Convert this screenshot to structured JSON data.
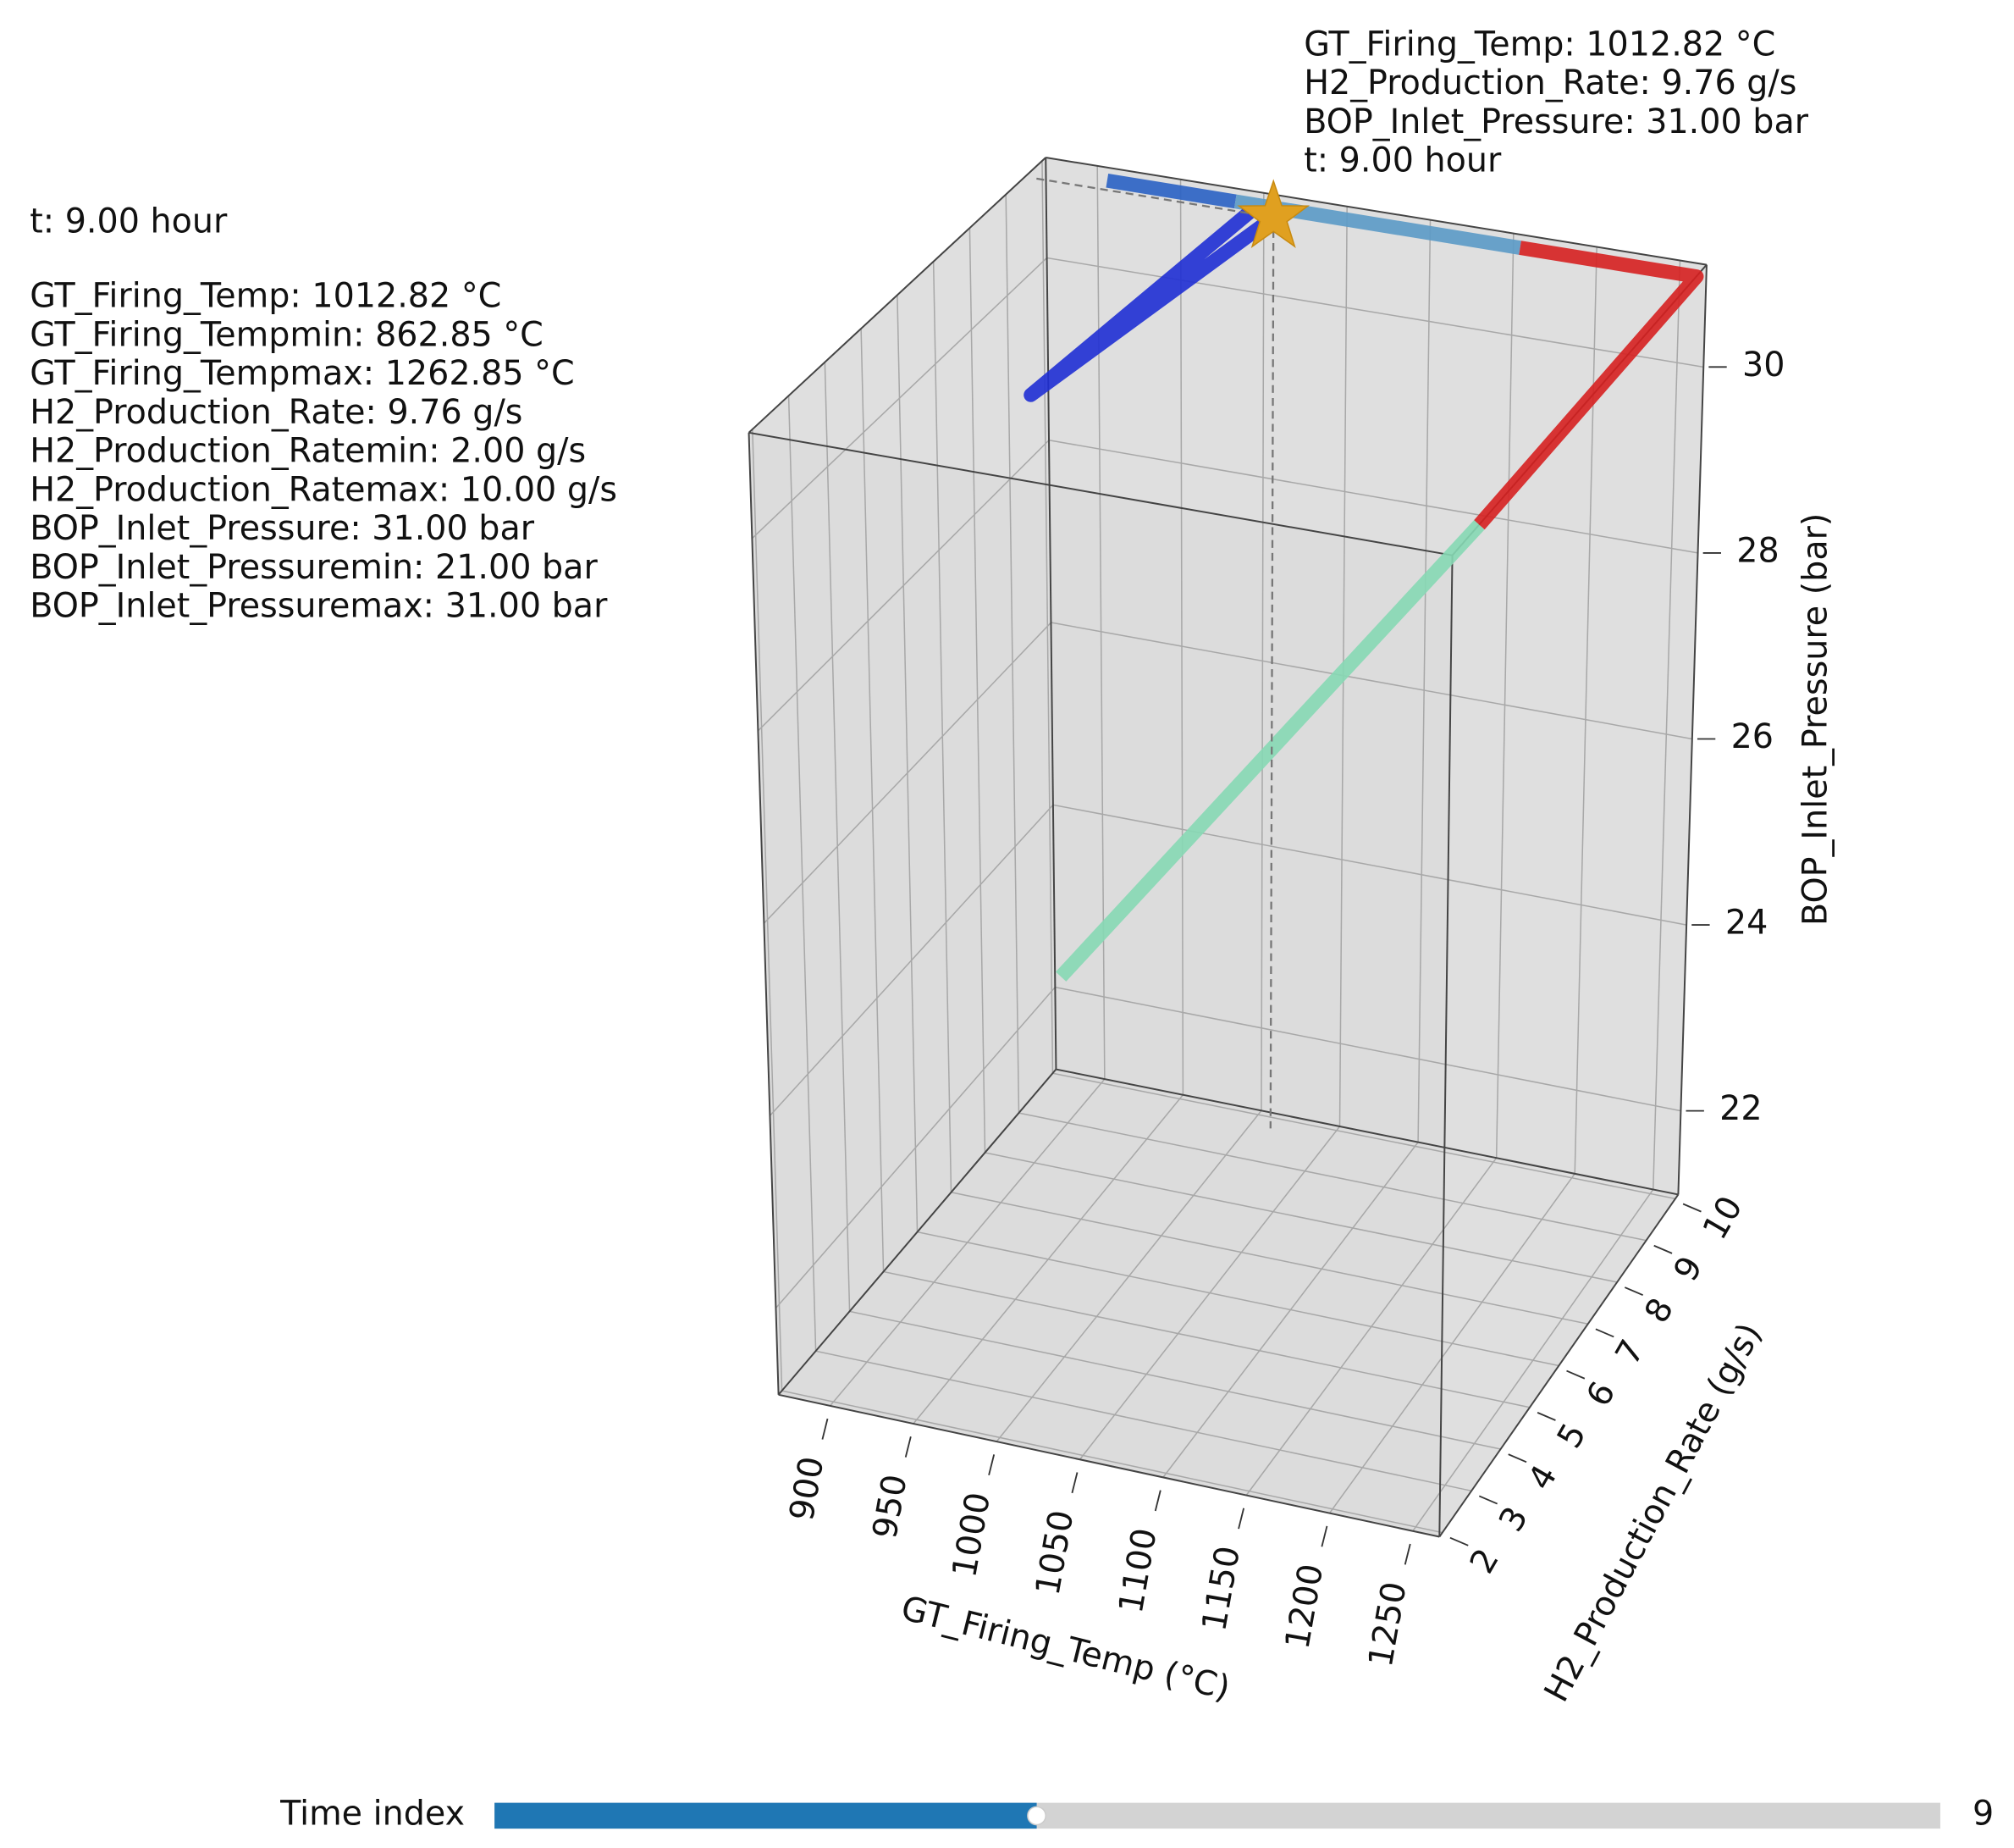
{
  "chart_data": {
    "type": "line3d",
    "annotation": [
      "GT_Firing_Temp: 1012.82 °C",
      "H2_Production_Rate: 9.76 g/s",
      "BOP_Inlet_Pressure: 31.00 bar",
      "t: 9.00 hour"
    ],
    "info": {
      "time": "t: 9.00 hour",
      "lines": [
        "GT_Firing_Temp: 1012.82 °C",
        "GT_Firing_Tempmin: 862.85 °C",
        "GT_Firing_Tempmax: 1262.85 °C",
        "H2_Production_Rate: 9.76 g/s",
        "H2_Production_Ratemin: 2.00 g/s",
        "H2_Production_Ratemax: 10.00 g/s",
        "BOP_Inlet_Pressure: 31.00 bar",
        "BOP_Inlet_Pressuremin: 21.00 bar",
        "BOP_Inlet_Pressuremax: 31.00 bar"
      ]
    },
    "xlabel": "GT_Firing_Temp (°C)",
    "ylabel": "H2_Production_Rate (g/s)",
    "zlabel": "BOP_Inlet_Pressure (bar)",
    "xlim": [
      869,
      1266
    ],
    "ylim": [
      1.9,
      10.1
    ],
    "zlim": [
      21.1,
      31.1
    ],
    "xticks": [
      900,
      950,
      1000,
      1050,
      1100,
      1150,
      1200,
      1250
    ],
    "yticks": [
      2,
      3,
      4,
      5,
      6,
      7,
      8,
      9,
      10
    ],
    "zticks": [
      22,
      24,
      26,
      28,
      30
    ],
    "grid": true,
    "series": [
      {
        "color": "#2a62c4",
        "x": [
          908,
          985
        ],
        "y": [
          10,
          10
        ],
        "z": [
          31,
          31
        ]
      },
      {
        "color": "#5b9ac6",
        "x": [
          985,
          1156
        ],
        "y": [
          10,
          10
        ],
        "z": [
          31,
          31
        ]
      },
      {
        "color": "#d62020",
        "x": [
          1156,
          1262,
          1262
        ],
        "y": [
          10,
          10,
          3
        ],
        "z": [
          31,
          31,
          31
        ]
      },
      {
        "color": "#86d8b4",
        "x": [
          1262,
          1040
        ],
        "y": [
          3,
          2
        ],
        "z": [
          31,
          26
        ]
      },
      {
        "color": "#1f2fd4",
        "x": [
          998,
          981,
          1013
        ],
        "y": [
          9.8,
          4.3,
          9.76
        ],
        "z": [
          31,
          31,
          31
        ]
      }
    ],
    "marker": {
      "x": 1012.82,
      "y": 9.76,
      "z": 31,
      "color": "#e0a020"
    },
    "slider": {
      "label": "Time index",
      "value": 9,
      "range": [
        0,
        24
      ],
      "color": "#1f77b4"
    }
  }
}
